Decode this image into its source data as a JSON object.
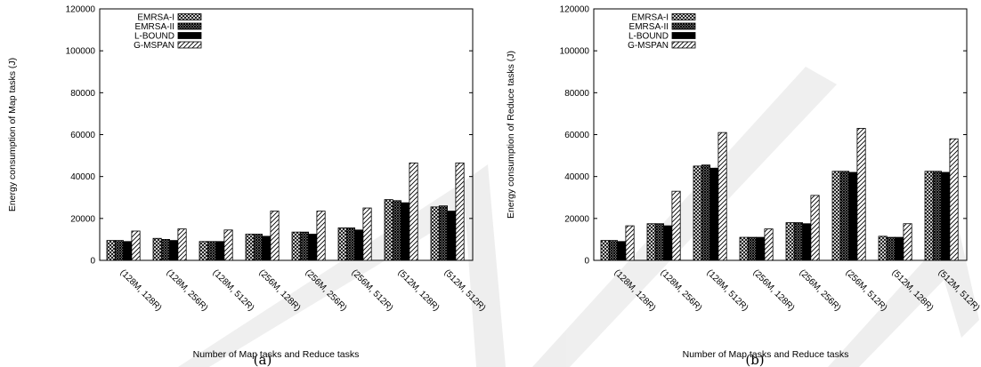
{
  "legend_series": [
    "EMRSA-I",
    "EMRSA-II",
    "L-BOUND",
    "G-MSPAN"
  ],
  "chart_data": [
    {
      "type": "bar",
      "caption": "(a)",
      "xlabel": "Number of Map tasks and Reduce tasks",
      "ylabel": "Energy consumption of Map tasks (J)",
      "ylim": [
        0,
        120000
      ],
      "yticks": [
        0,
        20000,
        40000,
        60000,
        80000,
        100000,
        120000
      ],
      "legend_position": "top-left",
      "categories": [
        "(128M, 128R)",
        "(128M, 256R)",
        "(128M, 512R)",
        "(256M, 128R)",
        "(256M, 256R)",
        "(256M, 512R)",
        "(512M, 128R)",
        "(512M, 512R)"
      ],
      "series": [
        {
          "name": "EMRSA-I",
          "values": [
            9500,
            10500,
            9000,
            12500,
            13500,
            15500,
            29000,
            25500
          ]
        },
        {
          "name": "EMRSA-II",
          "values": [
            9500,
            10000,
            9000,
            12500,
            13500,
            15500,
            28500,
            26000
          ]
        },
        {
          "name": "L-BOUND",
          "values": [
            9000,
            9500,
            9000,
            11500,
            12500,
            14500,
            27500,
            23500
          ]
        },
        {
          "name": "G-MSPAN",
          "values": [
            14000,
            15000,
            14500,
            23500,
            23500,
            25000,
            46500,
            46500
          ]
        }
      ]
    },
    {
      "type": "bar",
      "caption": "(b)",
      "xlabel": "Number of Map tasks and Reduce tasks",
      "ylabel": "Energy consumption of Reduce tasks (J)",
      "ylim": [
        0,
        120000
      ],
      "yticks": [
        0,
        20000,
        40000,
        60000,
        80000,
        100000,
        120000
      ],
      "legend_position": "top-left",
      "categories": [
        "(128M, 128R)",
        "(128M, 256R)",
        "(128M, 512R)",
        "(256M, 128R)",
        "(256M, 256R)",
        "(256M, 512R)",
        "(512M, 128R)",
        "(512M, 512R)"
      ],
      "series": [
        {
          "name": "EMRSA-I",
          "values": [
            9500,
            17500,
            45000,
            11000,
            18000,
            42500,
            11500,
            42500
          ]
        },
        {
          "name": "EMRSA-II",
          "values": [
            9500,
            17500,
            45500,
            11000,
            18000,
            42500,
            11000,
            42500
          ]
        },
        {
          "name": "L-BOUND",
          "values": [
            9000,
            16500,
            44000,
            11000,
            17500,
            42000,
            11000,
            42000
          ]
        },
        {
          "name": "G-MSPAN",
          "values": [
            16500,
            33000,
            61000,
            15000,
            31000,
            63000,
            17500,
            58000
          ]
        }
      ]
    }
  ]
}
